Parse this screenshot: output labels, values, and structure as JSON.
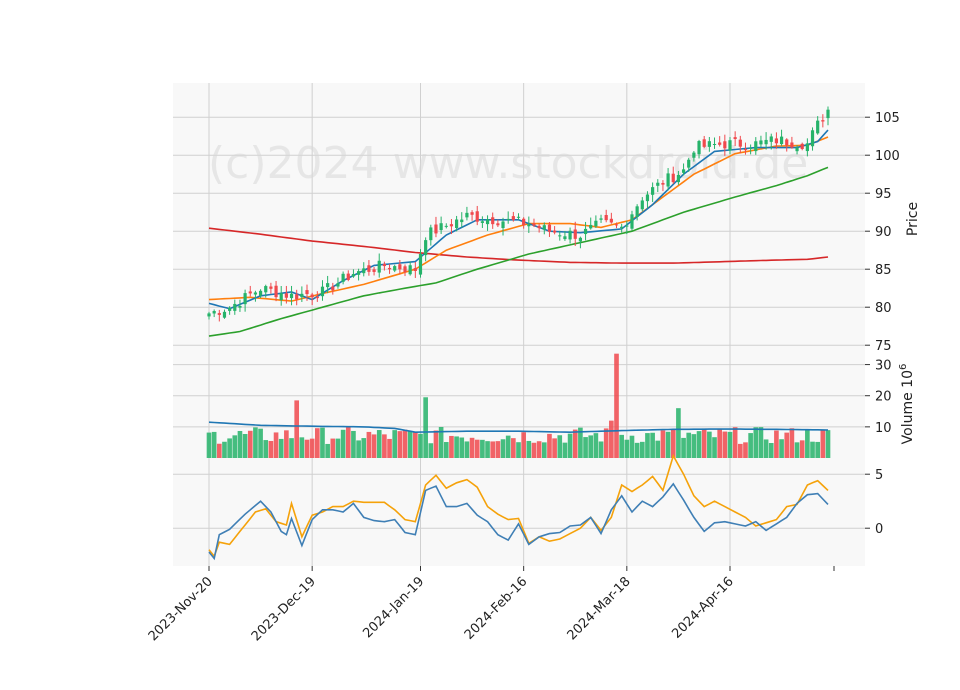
{
  "watermark": "(c)2024 www.stockdroid.de",
  "chart_data": {
    "type": "candlestick",
    "x_tick_labels": [
      "2023-Nov-20",
      "2023-Dec-19",
      "2024-Jan-19",
      "2024-Feb-16",
      "2024-Mar-18",
      "2024-Apr-16"
    ],
    "x_tick_index": [
      0,
      20,
      41,
      61,
      81,
      101
    ],
    "n_bars": 121,
    "colors": {
      "up": "#26b36a",
      "down": "#f0494d",
      "sma_fast": "#1f77b4",
      "sma_mid": "#ff7f0e",
      "sma_slow": "#2ca02c",
      "sma_long": "#d62728",
      "vol_avg": "#1f77b4",
      "osc_a": "#f5a20a",
      "osc_b": "#3f7fb5",
      "grid": "#d0d0d0",
      "panel_bg": "#f8f8f8"
    },
    "price_panel": {
      "ylabel": "Price",
      "yticks": [
        75,
        80,
        85,
        90,
        95,
        100,
        105
      ],
      "ylim": [
        74.5,
        109.5
      ],
      "close_anchors": [
        [
          0,
          79.2
        ],
        [
          4,
          80.0
        ],
        [
          10,
          82.5
        ],
        [
          16,
          81.5
        ],
        [
          22,
          82.0
        ],
        [
          28,
          84.5
        ],
        [
          34,
          85.5
        ],
        [
          40,
          85.0
        ],
        [
          42,
          89.5
        ],
        [
          50,
          92.0
        ],
        [
          56,
          91.5
        ],
        [
          62,
          91.0
        ],
        [
          66,
          90.0
        ],
        [
          72,
          89.5
        ],
        [
          76,
          91.0
        ],
        [
          80,
          90.5
        ],
        [
          84,
          94.5
        ],
        [
          88,
          96.5
        ],
        [
          92,
          98.0
        ],
        [
          94,
          101.0
        ],
        [
          100,
          101.5
        ],
        [
          106,
          101.5
        ],
        [
          110,
          102.0
        ],
        [
          116,
          101.5
        ],
        [
          118,
          104.0
        ],
        [
          120,
          106.0
        ]
      ],
      "sma_fast_anchors": [
        [
          0,
          80.5
        ],
        [
          4,
          79.8
        ],
        [
          10,
          81.5
        ],
        [
          16,
          82.0
        ],
        [
          20,
          81.0
        ],
        [
          26,
          83.5
        ],
        [
          32,
          85.5
        ],
        [
          40,
          86.0
        ],
        [
          46,
          89.5
        ],
        [
          52,
          91.5
        ],
        [
          60,
          91.5
        ],
        [
          66,
          90.0
        ],
        [
          72,
          89.8
        ],
        [
          80,
          90.3
        ],
        [
          86,
          93.5
        ],
        [
          92,
          97.5
        ],
        [
          98,
          100.5
        ],
        [
          106,
          101.0
        ],
        [
          114,
          101.0
        ],
        [
          118,
          101.8
        ],
        [
          120,
          103.3
        ]
      ],
      "sma_mid_anchors": [
        [
          0,
          81.0
        ],
        [
          8,
          81.3
        ],
        [
          16,
          80.8
        ],
        [
          22,
          81.8
        ],
        [
          30,
          83.0
        ],
        [
          40,
          85.0
        ],
        [
          46,
          87.5
        ],
        [
          54,
          89.5
        ],
        [
          62,
          91.0
        ],
        [
          70,
          91.0
        ],
        [
          76,
          90.5
        ],
        [
          82,
          91.5
        ],
        [
          88,
          94.5
        ],
        [
          94,
          97.5
        ],
        [
          102,
          100.2
        ],
        [
          110,
          101.2
        ],
        [
          116,
          101.3
        ],
        [
          120,
          102.4
        ]
      ],
      "sma_slow_anchors": [
        [
          0,
          76.2
        ],
        [
          6,
          76.8
        ],
        [
          14,
          78.5
        ],
        [
          22,
          80.0
        ],
        [
          30,
          81.5
        ],
        [
          38,
          82.5
        ],
        [
          44,
          83.2
        ],
        [
          52,
          85.0
        ],
        [
          62,
          87.0
        ],
        [
          72,
          88.5
        ],
        [
          82,
          90.0
        ],
        [
          92,
          92.5
        ],
        [
          102,
          94.5
        ],
        [
          110,
          96.0
        ],
        [
          116,
          97.3
        ],
        [
          120,
          98.4
        ]
      ],
      "sma_long_anchors": [
        [
          0,
          90.4
        ],
        [
          10,
          89.6
        ],
        [
          20,
          88.7
        ],
        [
          30,
          88.0
        ],
        [
          40,
          87.2
        ],
        [
          50,
          86.6
        ],
        [
          60,
          86.2
        ],
        [
          70,
          85.9
        ],
        [
          80,
          85.8
        ],
        [
          90,
          85.8
        ],
        [
          100,
          86.0
        ],
        [
          110,
          86.2
        ],
        [
          116,
          86.3
        ],
        [
          120,
          86.6
        ]
      ]
    },
    "volume_panel": {
      "ylabel": "Volume  10^6",
      "yticks": [
        10,
        20,
        30
      ],
      "ylim": [
        0,
        35
      ],
      "average_anchors": [
        [
          0,
          11.5
        ],
        [
          10,
          10.5
        ],
        [
          20,
          10.2
        ],
        [
          30,
          10.0
        ],
        [
          36,
          9.5
        ],
        [
          40,
          8.3
        ],
        [
          50,
          8.6
        ],
        [
          60,
          8.6
        ],
        [
          70,
          8.3
        ],
        [
          80,
          8.8
        ],
        [
          90,
          9.2
        ],
        [
          100,
          9.3
        ],
        [
          110,
          9.2
        ],
        [
          120,
          9.0
        ]
      ],
      "spikes": [
        [
          17,
          18.5
        ],
        [
          42,
          19.5
        ],
        [
          78,
          12.0
        ],
        [
          79,
          33.5
        ],
        [
          91,
          16.0
        ]
      ]
    },
    "oscillator_panel": {
      "yticks": [
        0,
        5
      ],
      "ylim": [
        -3.5,
        6.5
      ],
      "line_a_anchors": [
        [
          0,
          -2.0
        ],
        [
          1,
          -2.6
        ],
        [
          2,
          -1.3
        ],
        [
          4,
          -1.5
        ],
        [
          7,
          0.3
        ],
        [
          9,
          1.5
        ],
        [
          11,
          1.8
        ],
        [
          13,
          0.6
        ],
        [
          15,
          0.3
        ],
        [
          16,
          2.3
        ],
        [
          18,
          -0.8
        ],
        [
          20,
          1.2
        ],
        [
          22,
          1.5
        ],
        [
          24,
          2.0
        ],
        [
          26,
          2.0
        ],
        [
          28,
          2.5
        ],
        [
          30,
          2.4
        ],
        [
          34,
          2.4
        ],
        [
          36,
          1.7
        ],
        [
          38,
          0.8
        ],
        [
          40,
          0.6
        ],
        [
          42,
          4.0
        ],
        [
          44,
          4.9
        ],
        [
          46,
          3.7
        ],
        [
          48,
          4.2
        ],
        [
          50,
          4.5
        ],
        [
          52,
          3.8
        ],
        [
          54,
          2.0
        ],
        [
          56,
          1.3
        ],
        [
          58,
          0.8
        ],
        [
          60,
          0.9
        ],
        [
          62,
          -1.4
        ],
        [
          64,
          -0.8
        ],
        [
          66,
          -1.2
        ],
        [
          68,
          -1.0
        ],
        [
          70,
          -0.5
        ],
        [
          72,
          0.0
        ],
        [
          74,
          1.0
        ],
        [
          76,
          -0.2
        ],
        [
          78,
          1.0
        ],
        [
          80,
          4.0
        ],
        [
          82,
          3.4
        ],
        [
          84,
          4.0
        ],
        [
          86,
          4.8
        ],
        [
          88,
          3.5
        ],
        [
          90,
          6.7
        ],
        [
          92,
          5.0
        ],
        [
          94,
          3.0
        ],
        [
          96,
          2.0
        ],
        [
          98,
          2.5
        ],
        [
          100,
          2.0
        ],
        [
          104,
          1.0
        ],
        [
          106,
          0.2
        ],
        [
          108,
          0.5
        ],
        [
          110,
          0.8
        ],
        [
          112,
          2.0
        ],
        [
          114,
          2.2
        ],
        [
          116,
          4.0
        ],
        [
          118,
          4.4
        ],
        [
          120,
          3.5
        ]
      ],
      "line_b_anchors": [
        [
          0,
          -2.2
        ],
        [
          1,
          -2.8
        ],
        [
          2,
          -0.6
        ],
        [
          4,
          -0.1
        ],
        [
          7,
          1.3
        ],
        [
          10,
          2.5
        ],
        [
          12,
          1.5
        ],
        [
          14,
          -0.3
        ],
        [
          15,
          -0.6
        ],
        [
          16,
          0.9
        ],
        [
          18,
          -1.6
        ],
        [
          20,
          0.8
        ],
        [
          22,
          1.7
        ],
        [
          24,
          1.7
        ],
        [
          26,
          1.5
        ],
        [
          28,
          2.3
        ],
        [
          30,
          1.0
        ],
        [
          32,
          0.7
        ],
        [
          34,
          0.6
        ],
        [
          36,
          0.8
        ],
        [
          38,
          -0.4
        ],
        [
          40,
          -0.6
        ],
        [
          42,
          3.5
        ],
        [
          44,
          3.9
        ],
        [
          46,
          2.0
        ],
        [
          48,
          2.0
        ],
        [
          50,
          2.3
        ],
        [
          52,
          1.2
        ],
        [
          54,
          0.6
        ],
        [
          56,
          -0.6
        ],
        [
          58,
          -1.1
        ],
        [
          60,
          0.4
        ],
        [
          62,
          -1.5
        ],
        [
          64,
          -0.8
        ],
        [
          66,
          -0.5
        ],
        [
          68,
          -0.4
        ],
        [
          70,
          0.2
        ],
        [
          72,
          0.3
        ],
        [
          74,
          1.0
        ],
        [
          76,
          -0.5
        ],
        [
          78,
          1.7
        ],
        [
          80,
          3.0
        ],
        [
          82,
          1.5
        ],
        [
          84,
          2.5
        ],
        [
          86,
          2.0
        ],
        [
          88,
          2.9
        ],
        [
          90,
          4.1
        ],
        [
          92,
          2.6
        ],
        [
          94,
          1.0
        ],
        [
          96,
          -0.3
        ],
        [
          98,
          0.5
        ],
        [
          100,
          0.6
        ],
        [
          104,
          0.2
        ],
        [
          106,
          0.6
        ],
        [
          108,
          -0.2
        ],
        [
          110,
          0.4
        ],
        [
          112,
          1.0
        ],
        [
          114,
          2.3
        ],
        [
          116,
          3.1
        ],
        [
          118,
          3.2
        ],
        [
          120,
          2.2
        ]
      ]
    }
  }
}
